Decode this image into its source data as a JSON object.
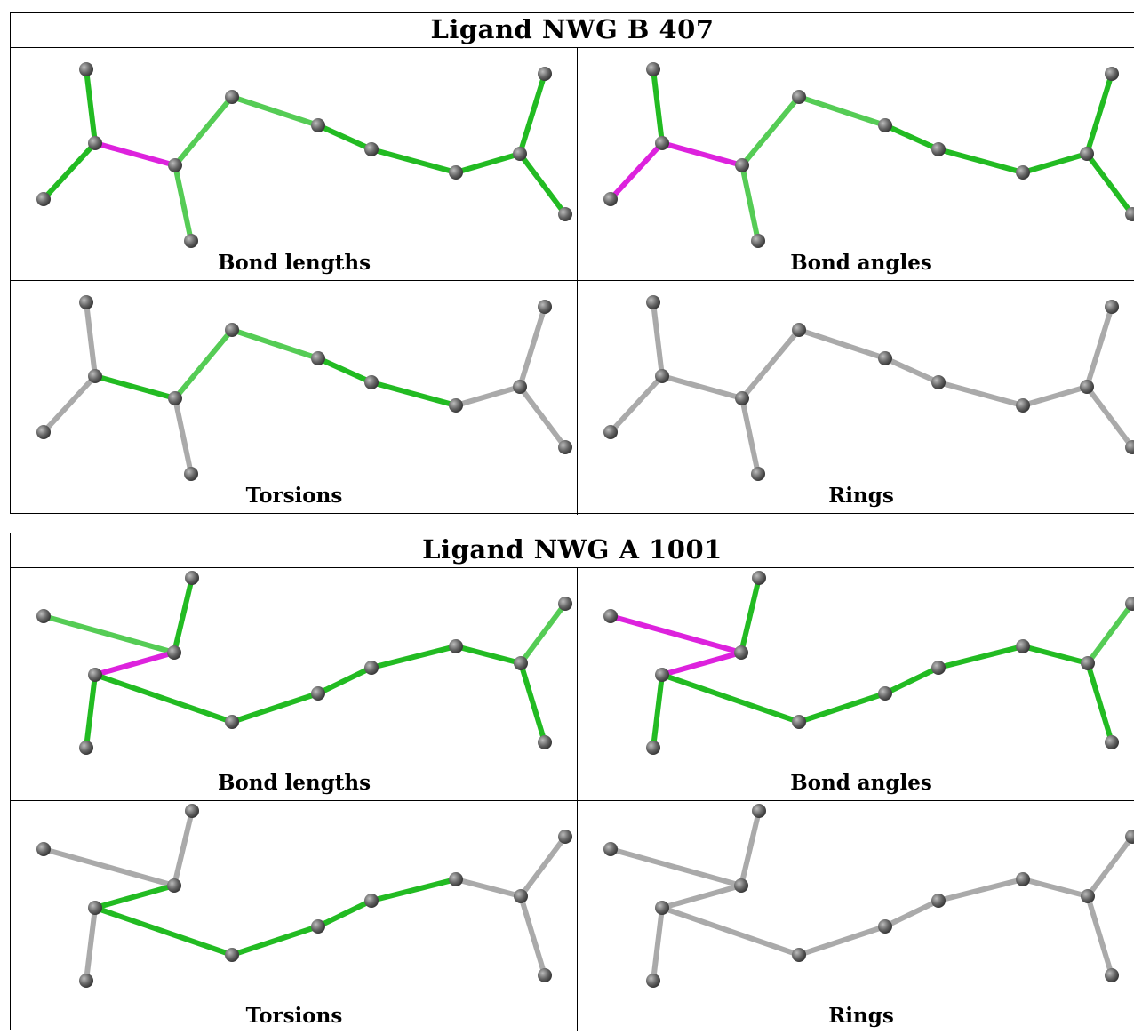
{
  "ligands": [
    {
      "title": "Ligand NWG B 407",
      "panels": [
        {
          "label": "Bond lengths"
        },
        {
          "label": "Bond angles"
        },
        {
          "label": "Torsions"
        },
        {
          "label": "Rings"
        }
      ]
    },
    {
      "title": "Ligand NWG A 1001",
      "panels": [
        {
          "label": "Bond lengths"
        },
        {
          "label": "Bond angles"
        },
        {
          "label": "Torsions"
        },
        {
          "label": "Rings"
        }
      ]
    }
  ],
  "colors": {
    "green": "#22bb22",
    "light_green": "#55cc55",
    "magenta": "#dd22dd",
    "gray_bond": "#aaaaaa",
    "atom": "#666666"
  }
}
